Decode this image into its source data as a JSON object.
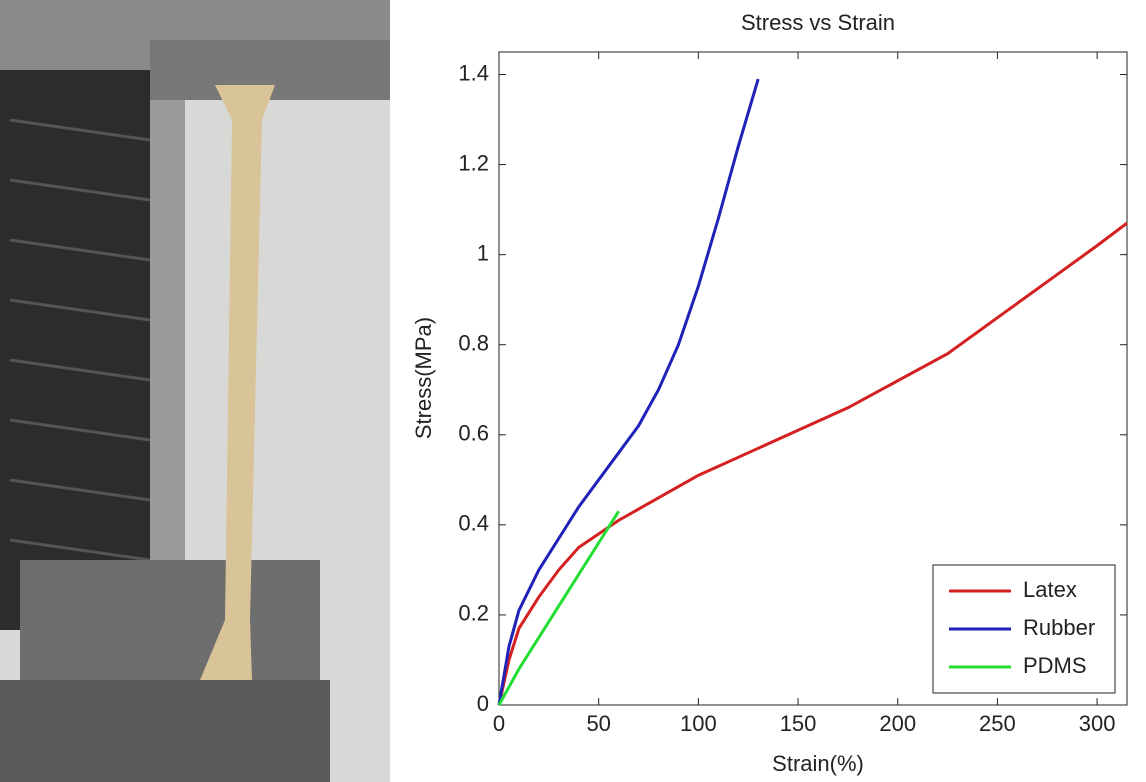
{
  "chart_data": {
    "type": "line",
    "title": "Stress vs Strain",
    "x_label": "Strain(%)",
    "y_label": "Stress(MPa)",
    "xlim": [
      0,
      315
    ],
    "ylim": [
      0,
      1.45
    ],
    "xticks": [
      0,
      50,
      100,
      150,
      200,
      250,
      300
    ],
    "yticks": [
      0,
      0.2,
      0.4,
      0.6,
      0.8,
      1,
      1.2,
      1.4
    ],
    "legend": "lower right",
    "series": [
      {
        "name": "Latex",
        "color": "#d42020",
        "x": [
          0,
          5,
          10,
          20,
          30,
          40,
          50,
          60,
          80,
          100,
          125,
          150,
          175,
          200,
          225,
          250,
          275,
          300,
          315
        ],
        "values": [
          0,
          0.1,
          0.17,
          0.24,
          0.3,
          0.35,
          0.38,
          0.41,
          0.46,
          0.51,
          0.56,
          0.61,
          0.66,
          0.72,
          0.78,
          0.86,
          0.94,
          1.02,
          1.07
        ]
      },
      {
        "name": "Rubber",
        "color": "#1f22b8",
        "x": [
          0,
          5,
          10,
          20,
          30,
          40,
          50,
          60,
          70,
          80,
          90,
          100,
          110,
          120,
          130
        ],
        "values": [
          0,
          0.13,
          0.21,
          0.3,
          0.37,
          0.44,
          0.5,
          0.56,
          0.62,
          0.7,
          0.8,
          0.93,
          1.08,
          1.24,
          1.39
        ]
      },
      {
        "name": "PDMS",
        "color": "#22dd33",
        "x": [
          0,
          10,
          20,
          30,
          40,
          50,
          60
        ],
        "values": [
          0,
          0.08,
          0.15,
          0.22,
          0.29,
          0.36,
          0.43
        ]
      }
    ]
  }
}
